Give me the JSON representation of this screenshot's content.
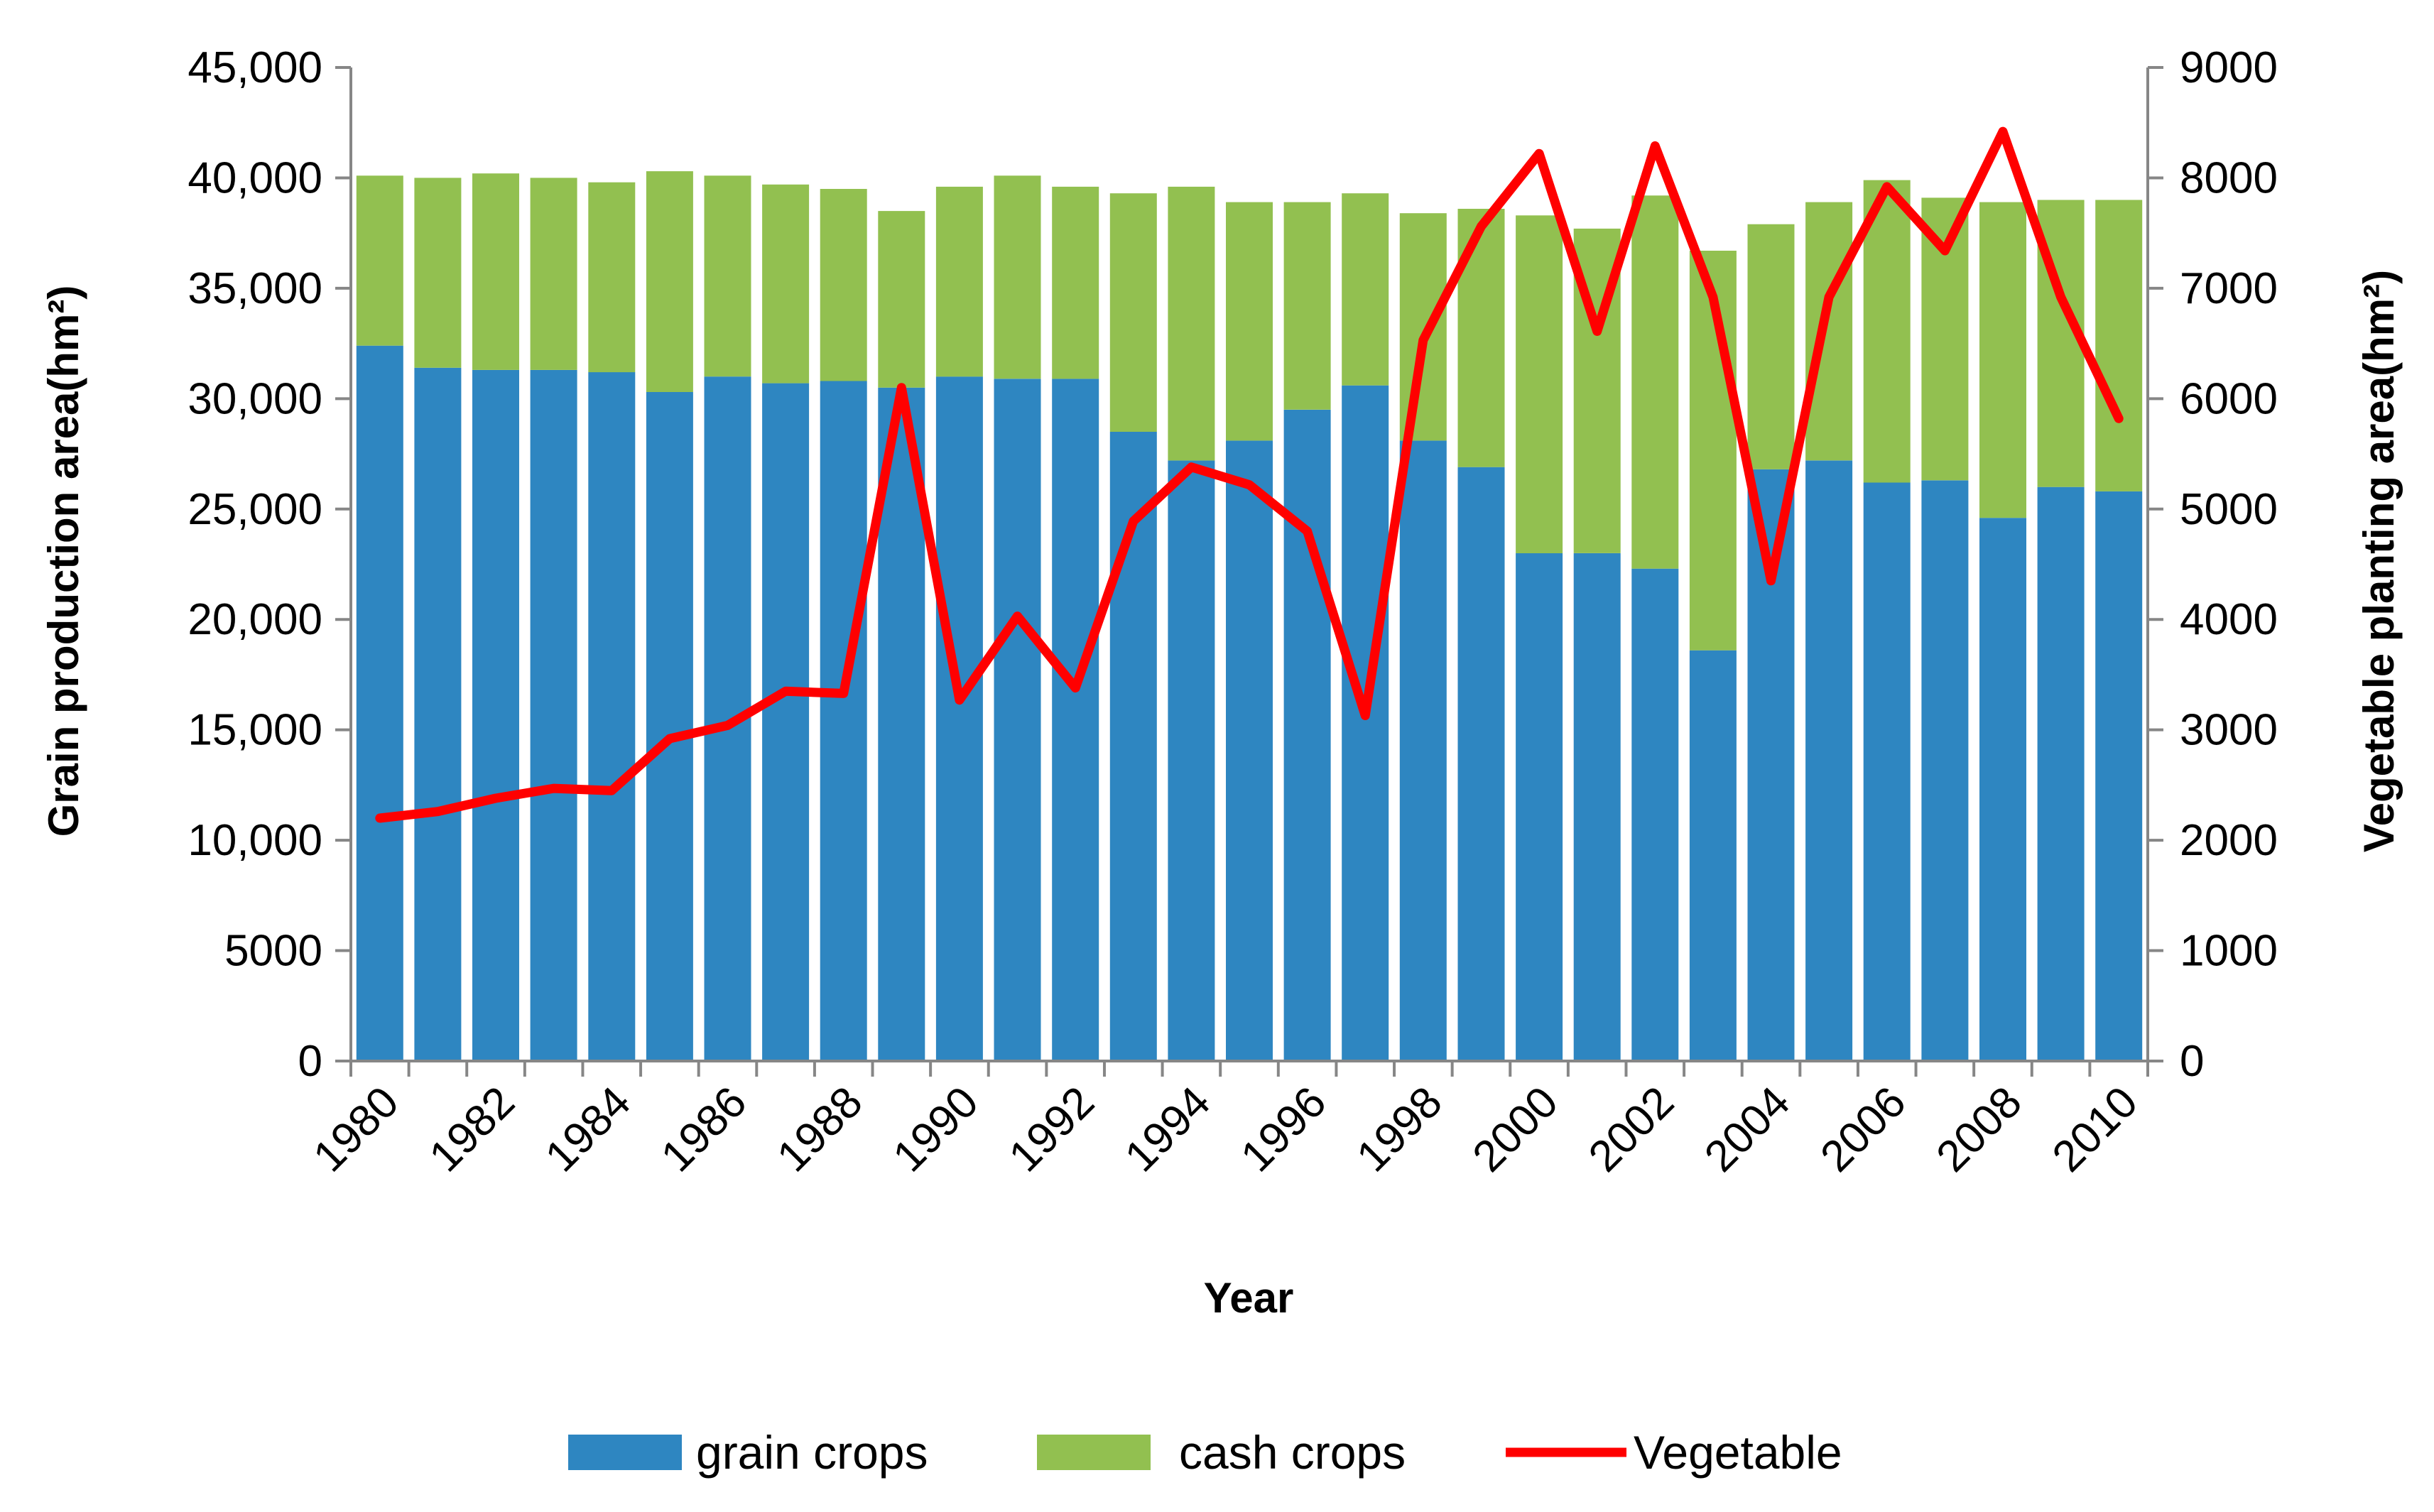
{
  "chart_data": {
    "type": "bar",
    "subtype": "stacked-bar-with-line-secondary-axis",
    "title": "",
    "xlabel": "Year",
    "ylabel": "Grain production area(hm²)",
    "y2label": "Vegetable planting area(hm²)",
    "ylim": [
      0,
      45000
    ],
    "y2lim": [
      0,
      9000
    ],
    "yticks": [
      "0",
      "5000",
      "10,000",
      "15,000",
      "20,000",
      "25,000",
      "30,000",
      "35,000",
      "40,000",
      "45,000"
    ],
    "y2ticks": [
      "0",
      "1000",
      "2000",
      "3000",
      "4000",
      "5000",
      "6000",
      "7000",
      "8000",
      "9000"
    ],
    "categories": [
      "1980",
      "1981",
      "1982",
      "1983",
      "1984",
      "1985",
      "1986",
      "1987",
      "1988",
      "1989",
      "1990",
      "1991",
      "1992",
      "1993",
      "1994",
      "1995",
      "1996",
      "1997",
      "1998",
      "1999",
      "2000",
      "2001",
      "2002",
      "2003",
      "2004",
      "2005",
      "2006",
      "2007",
      "2008",
      "2009",
      "2010"
    ],
    "xtick_labels": [
      "1980",
      "",
      "1982",
      "",
      "1984",
      "",
      "1986",
      "",
      "1988",
      "",
      "1990",
      "",
      "1992",
      "",
      "1994",
      "",
      "1996",
      "",
      "1998",
      "",
      "2000",
      "",
      "2002",
      "",
      "2004",
      "",
      "2006",
      "",
      "2008",
      "",
      "2010"
    ],
    "grid": false,
    "legend_position": "bottom",
    "series": [
      {
        "name": "grain crops",
        "kind": "bar",
        "axis": "left",
        "color": "#2E86C1",
        "values": [
          32400,
          31400,
          31300,
          31300,
          31200,
          30300,
          31000,
          30700,
          30800,
          30500,
          31000,
          30900,
          30900,
          28500,
          27200,
          28100,
          29500,
          30600,
          28100,
          26900,
          23000,
          23000,
          22300,
          18600,
          26800,
          27200,
          26200,
          26300,
          24600,
          26000,
          25800
        ]
      },
      {
        "name": "cash crops",
        "kind": "bar",
        "axis": "left",
        "color": "#92C050",
        "values": [
          7700,
          8600,
          8900,
          8700,
          8600,
          10000,
          9100,
          9000,
          8700,
          8000,
          8600,
          9200,
          8700,
          10800,
          12400,
          10800,
          9400,
          8700,
          10300,
          11700,
          15300,
          14700,
          16900,
          18100,
          11100,
          11700,
          13700,
          12800,
          14300,
          13000,
          13200
        ]
      },
      {
        "name": "Vegetable",
        "kind": "line",
        "axis": "right",
        "color": "#FF0000",
        "values": [
          2200,
          2260,
          2380,
          2470,
          2450,
          2920,
          3040,
          3350,
          3330,
          6100,
          3270,
          4030,
          3380,
          4890,
          5380,
          5220,
          4800,
          3130,
          6530,
          7560,
          8220,
          6610,
          8290,
          6920,
          4350,
          6920,
          7920,
          7340,
          8420,
          6920,
          5820
        ]
      }
    ]
  }
}
